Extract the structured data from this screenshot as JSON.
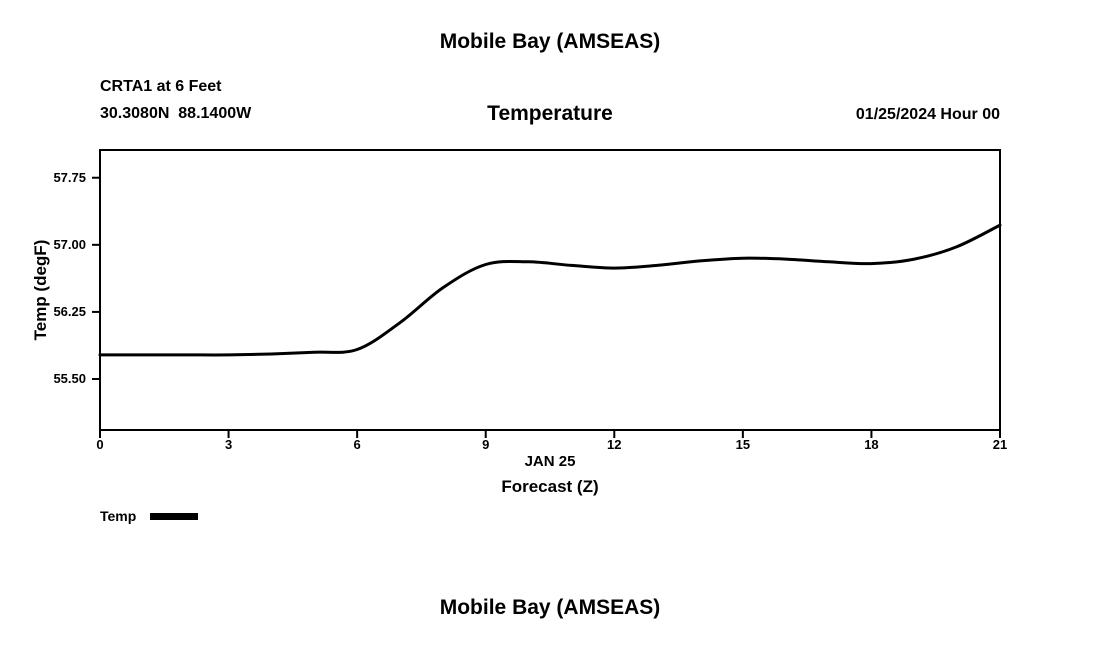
{
  "page": {
    "title_top": "Mobile Bay (AMSEAS)",
    "title_bottom": "Mobile Bay (AMSEAS)"
  },
  "header": {
    "station": "CRTA1 at 6 Feet",
    "coordinates": "30.3080N  88.1400W",
    "plot_title": "Temperature",
    "run_datetime": "01/25/2024 Hour 00"
  },
  "chart_data": {
    "type": "line",
    "title": "Temperature",
    "xlabel": "Forecast (Z)",
    "x_sublabel": "JAN 25",
    "ylabel": "Temp (degF)",
    "x": [
      0,
      1,
      2,
      3,
      4,
      5,
      6,
      7,
      8,
      9,
      10,
      11,
      12,
      13,
      14,
      15,
      16,
      17,
      18,
      19,
      20,
      21
    ],
    "series": [
      {
        "name": "Temp",
        "values": [
          55.77,
          55.77,
          55.77,
          55.77,
          55.78,
          55.8,
          55.83,
          56.13,
          56.52,
          56.78,
          56.81,
          56.77,
          56.74,
          56.77,
          56.82,
          56.85,
          56.84,
          56.81,
          56.79,
          56.84,
          56.98,
          57.22
        ]
      }
    ],
    "xlim": [
      0,
      21
    ],
    "ylim": [
      54.93,
      58.06
    ],
    "xticks": [
      0,
      3,
      6,
      9,
      12,
      15,
      18,
      21
    ],
    "xtick_labels": [
      "0",
      "3",
      "6",
      "9",
      "12",
      "15",
      "18",
      "21"
    ],
    "yticks": [
      55.5,
      56.25,
      57.0,
      57.75
    ],
    "ytick_labels": [
      "55.50",
      "56.25",
      "57.00",
      "57.75"
    ],
    "grid": false,
    "line_color": "#000000",
    "line_width": 3,
    "legend": {
      "label": "Temp",
      "position": "bottom-left"
    }
  }
}
